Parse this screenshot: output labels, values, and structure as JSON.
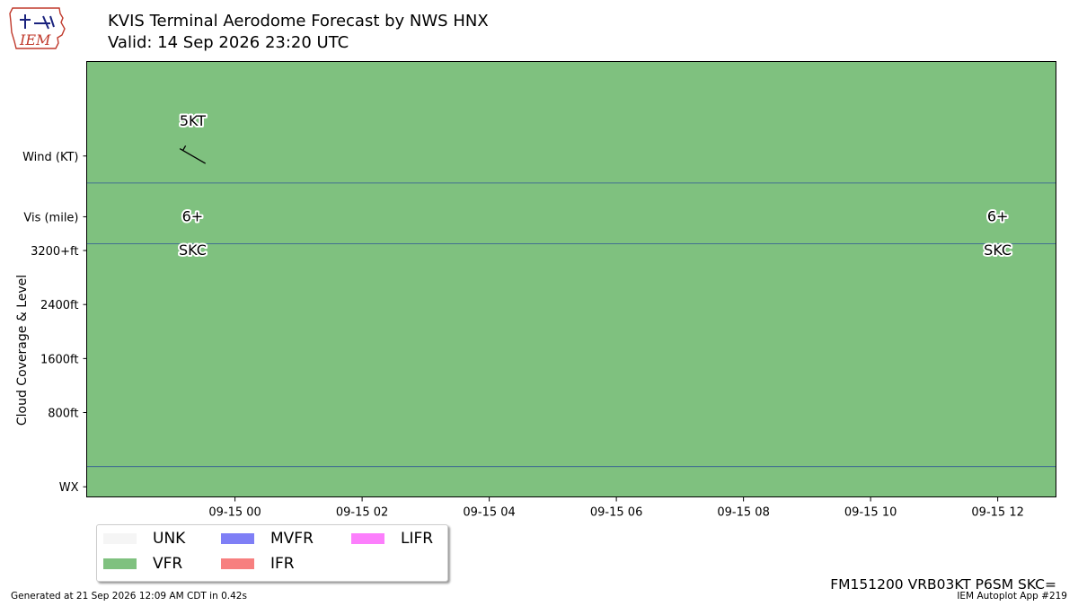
{
  "header": {
    "title": "KVIS Terminal Aerodome Forecast by NWS HNX",
    "subtitle": "Valid: 14 Sep 2026 23:20 UTC",
    "logo_text": "IEM"
  },
  "chart_data": {
    "type": "heatmap",
    "title": "KVIS Terminal Aerodome Forecast by NWS HNX",
    "subtitle": "Valid: 14 Sep 2026 23:20 UTC",
    "ylabel": "Cloud Coverage & Level",
    "x_range": [
      "2026-09-14 21:40",
      "2026-09-15 12:55"
    ],
    "x_ticks": [
      {
        "time": "2026-09-15 00:00",
        "label": "09-15 00"
      },
      {
        "time": "2026-09-15 02:00",
        "label": "09-15 02"
      },
      {
        "time": "2026-09-15 04:00",
        "label": "09-15 04"
      },
      {
        "time": "2026-09-15 06:00",
        "label": "09-15 06"
      },
      {
        "time": "2026-09-15 08:00",
        "label": "09-15 08"
      },
      {
        "time": "2026-09-15 10:00",
        "label": "09-15 10"
      },
      {
        "time": "2026-09-15 12:00",
        "label": "09-15 12"
      }
    ],
    "y_ticks": [
      {
        "label": "Wind (KT)",
        "value": 4600
      },
      {
        "label": "Vis (mile)",
        "value": 3700
      },
      {
        "label": "3200+ft",
        "value": 3200
      },
      {
        "label": "2400ft",
        "value": 2400
      },
      {
        "label": "1600ft",
        "value": 1600
      },
      {
        "label": "800ft",
        "value": 800
      },
      {
        "label": "WX",
        "value": -300
      }
    ],
    "ylim": [
      -450,
      6000
    ],
    "row_dividers": [
      4200,
      3300,
      0
    ],
    "flight_category_periods": [
      {
        "start": "2026-09-14 21:40",
        "end": "2026-09-15 12:55",
        "category": "VFR"
      }
    ],
    "forecasts": [
      {
        "time": "2026-09-14 23:20",
        "wind_dir": "300",
        "wind_speed_kt": 5,
        "wind_label": "5KT",
        "vis_label": "6+",
        "sky_label": "SKC"
      },
      {
        "time": "2026-09-15 12:00",
        "wind_dir": "VRB",
        "wind_speed_kt": 3,
        "wind_label": "",
        "vis_label": "6+",
        "sky_label": "SKC"
      }
    ],
    "legend": {
      "placement": "below-left",
      "entries": [
        {
          "label": "UNK",
          "color": "#f5f5f5"
        },
        {
          "label": "VFR",
          "color": "#7fc17f"
        },
        {
          "label": "MVFR",
          "color": "#7f7ff6"
        },
        {
          "label": "IFR",
          "color": "#f77f7f"
        },
        {
          "label": "LIFR",
          "color": "#fc7ffc"
        }
      ]
    },
    "colors": {
      "plot_fill": "#7fc17f",
      "divider": "#2f5597",
      "text_halo": "#ffffff"
    }
  },
  "raw_taf": "FM151200 VRB03KT P6SM SKC=",
  "footer": {
    "generated": "Generated at 21 Sep 2026 12:09 AM CDT in 0.42s",
    "app": "IEM Autoplot App #219"
  }
}
